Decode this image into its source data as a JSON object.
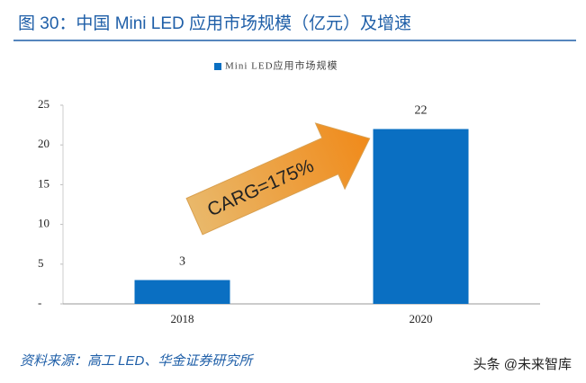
{
  "chart_data": {
    "type": "bar",
    "title": "图 30：中国 Mini LED 应用市场规模（亿元）及增速",
    "categories": [
      "2018",
      "2020"
    ],
    "series": [
      {
        "name": "Mini LED应用市场规模",
        "color": "#0a6fc2",
        "values": [
          3,
          22
        ]
      }
    ],
    "ylim": [
      0,
      25
    ],
    "yticks": [
      {
        "value": 0,
        "label": "-"
      },
      5,
      10,
      15,
      20,
      25
    ],
    "annotation": "CARG=175%",
    "source": "资料来源：高工 LED、华金证券研究所",
    "watermark": "头条 @未来智库"
  }
}
